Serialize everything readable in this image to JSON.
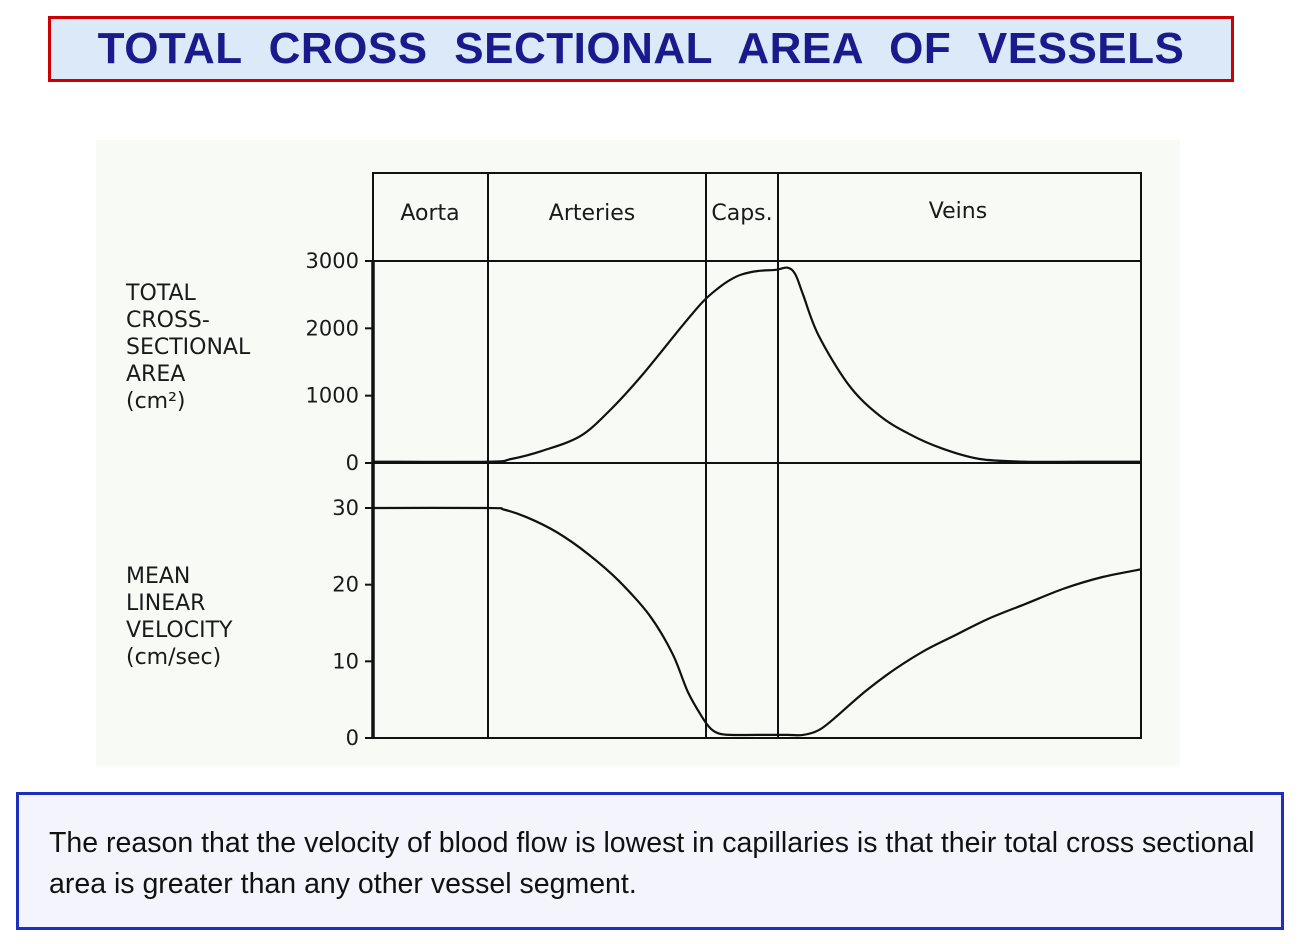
{
  "slide": {
    "title": "TOTAL  CROSS  SECTIONAL  AREA  OF  VESSELS",
    "note": "The reason that the velocity of blood flow is lowest in capillaries is that their total cross sectional area is greater than any other vessel segment."
  },
  "colors": {
    "title_text": "#1a1a8c",
    "title_border": "#cc0000",
    "title_background": "#dbe9f8",
    "note_border": "#1c2fbf"
  },
  "chart_data": [
    {
      "type": "line",
      "segments": [
        "Aorta",
        "Arteries",
        "Caps.",
        "Veins"
      ],
      "ylabel_lines": [
        "TOTAL",
        "CROSS-",
        "SECTIONAL",
        "AREA",
        "(cm²)"
      ],
      "yticks": [
        "3000",
        "2000",
        "1000",
        "0"
      ],
      "ylim": [
        0,
        3000
      ],
      "xlim": [
        0,
        100
      ],
      "grid": false,
      "x": [
        0,
        15,
        18,
        22,
        27,
        31,
        35,
        40,
        43,
        45,
        46.5,
        48,
        50,
        52.5,
        54,
        55,
        56,
        58,
        62,
        66,
        70,
        74,
        79,
        85,
        92,
        100
      ],
      "values": [
        20,
        20,
        60,
        180,
        400,
        800,
        1300,
        2000,
        2400,
        2600,
        2720,
        2800,
        2850,
        2870,
        2900,
        2800,
        2500,
        1900,
        1150,
        700,
        420,
        220,
        60,
        20,
        20,
        20
      ]
    },
    {
      "type": "line",
      "ylabel_lines": [
        "MEAN",
        "LINEAR",
        "VELOCITY",
        "(cm/sec)"
      ],
      "yticks": [
        "30",
        "20",
        "10",
        "0"
      ],
      "ylim": [
        0,
        30
      ],
      "xlim": [
        0,
        100
      ],
      "grid": false,
      "x": [
        0,
        15,
        17,
        20,
        24,
        28,
        32,
        36,
        39,
        41,
        43,
        44,
        45,
        46.5,
        50,
        54,
        56,
        58,
        60,
        64,
        68,
        72,
        76,
        80,
        85,
        90,
        95,
        100
      ],
      "values": [
        30,
        30,
        29.8,
        28.8,
        26.8,
        24,
        20.5,
        16,
        11,
        6,
        2.5,
        1.2,
        0.6,
        0.4,
        0.4,
        0.4,
        0.4,
        1,
        2.5,
        6,
        9,
        11.5,
        13.5,
        15.5,
        17.5,
        19.5,
        21,
        22
      ]
    }
  ]
}
